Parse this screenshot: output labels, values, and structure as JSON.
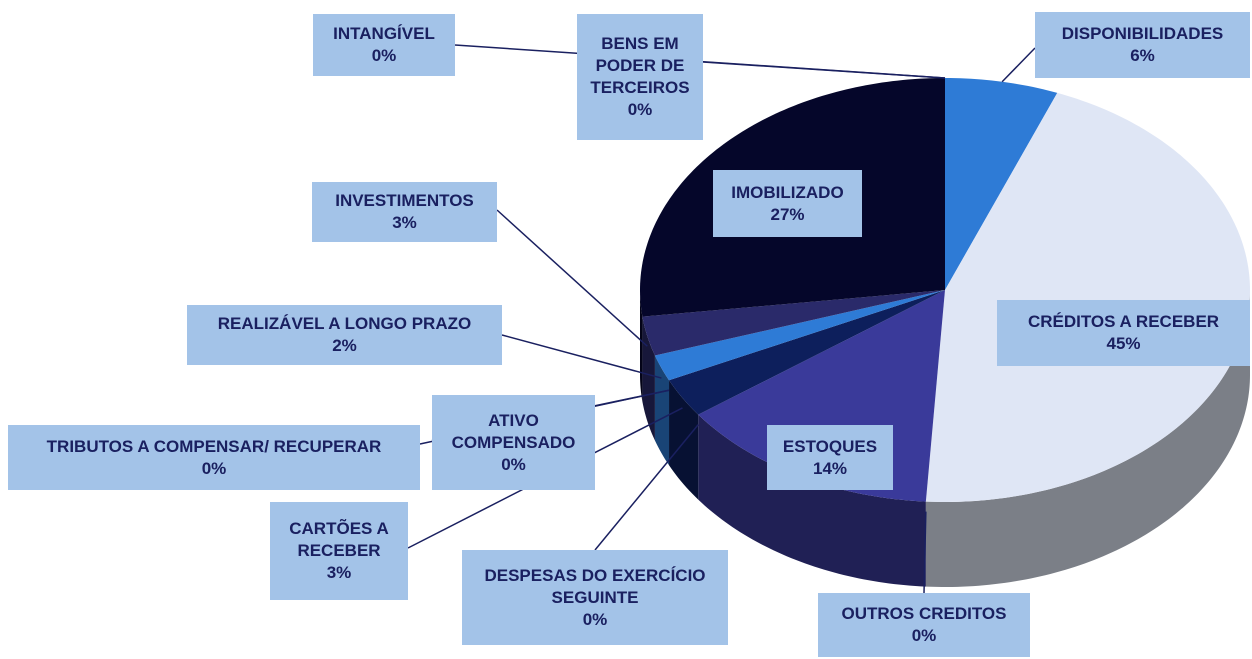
{
  "chart_data": {
    "type": "pie3d",
    "categories": [
      "DISPONIBILIDADES",
      "CRÉDITOS A RECEBER",
      "OUTROS CREDITOS",
      "ESTOQUES",
      "DESPESAS DO EXERCÍCIO SEGUINTE",
      "CARTÕES A RECEBER",
      "ATIVO COMPENSADO",
      "TRIBUTOS A COMPENSAR/ RECUPERAR",
      "REALIZÁVEL A LONGO PRAZO",
      "INVESTIMENTOS",
      "IMOBILIZADO",
      "BENS EM PODER DE TERCEIROS",
      "INTANGÍVEL"
    ],
    "values": [
      6,
      45,
      0,
      14,
      0,
      3,
      0,
      0,
      2,
      3,
      27,
      0,
      0
    ],
    "value_labels": [
      "6%",
      "45%",
      "0%",
      "14%",
      "0%",
      "3%",
      "0%",
      "0%",
      "2%",
      "3%",
      "27%",
      "0%",
      "0%"
    ],
    "colors": [
      "#2e7bd6",
      "#dfe6f5",
      "#4b5fb0",
      "#3a3a9a",
      "#1a1a50",
      "#0d1f5c",
      "#1a2a70",
      "#20306a",
      "#2e7bd6",
      "#2a2a6a",
      "#05062a",
      "#101040",
      "#101040"
    ]
  }
}
